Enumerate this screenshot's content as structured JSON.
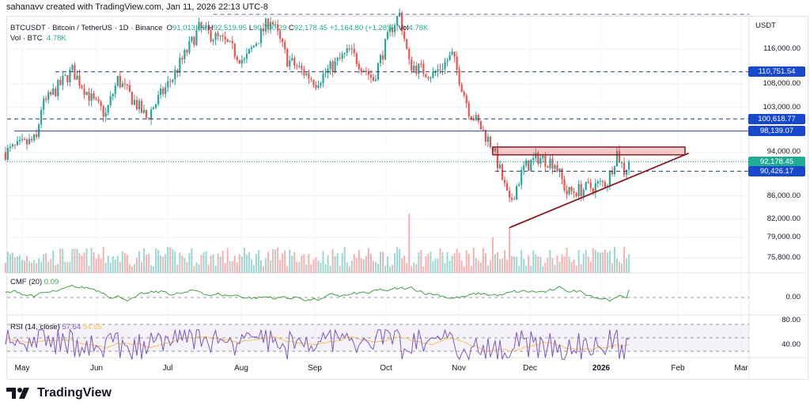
{
  "credit": "sahanavv created with TradingView.com, Jan 11, 2026 22:13 UTC-8",
  "legend": {
    "symbol": "BTCUSDT · Bitcoin / TetherUS · 1D · Binance",
    "open_label": "O",
    "open": "91,013.66",
    "high_label": "H",
    "high": "92,519.95",
    "low_label": "L",
    "low": "90,700.29",
    "close_label": "C",
    "close": "92,178.45",
    "change": "+1,164.80 (+1.28%)",
    "vol_label": "Vol",
    "vol": "4.78K",
    "vol_pane_label": "Vol · BTC",
    "vol_pane_value": "4.78K"
  },
  "cmf": {
    "label": "CMF (20)",
    "value": "0.09",
    "color": "#43a047"
  },
  "rsi": {
    "label": "RSI (14, close)",
    "value": "57.64",
    "ma_value": "54.65",
    "color": "#7e57c2",
    "ma_color": "#f5c451"
  },
  "colors": {
    "up": "#26a69a",
    "down": "#ef5350",
    "level": "#1848cc",
    "pattern": "#8b1d26",
    "last_price": "#26a69a"
  },
  "axis": {
    "currency": "USDT",
    "price_ticks": [
      "116,000.00",
      "108,000.00",
      "103,000.00",
      "94,000.00",
      "86,000.00",
      "82,000.00",
      "79,000.00",
      "75,800.00"
    ],
    "cmf_ticks": [
      "0.00"
    ],
    "rsi_ticks": [
      "80.00",
      "40.00"
    ],
    "time_ticks": [
      "May",
      "Jun",
      "Jul",
      "Aug",
      "Sep",
      "Oct",
      "Nov",
      "Dec",
      "2026",
      "Feb",
      "Mar"
    ],
    "scale": "log"
  },
  "price_tags": [
    {
      "value": "110,751.54",
      "style": "dashed"
    },
    {
      "value": "100,618.77",
      "style": "dashed"
    },
    {
      "value": "98,139.07",
      "style": "solid"
    },
    {
      "value": "92,178.45",
      "style": "last-price"
    },
    {
      "value": "90,426.17",
      "style": "dashed"
    }
  ],
  "chart_data": {
    "type": "candlestick",
    "symbol": "BTCUSDT",
    "interval": "1D",
    "approx_close_path": [
      [
        "2025-04-24",
        94000
      ],
      [
        "2025-05-07",
        96500
      ],
      [
        "2025-05-09",
        103000
      ],
      [
        "2025-05-22",
        111000
      ],
      [
        "2025-05-31",
        104000
      ],
      [
        "2025-06-05",
        101500
      ],
      [
        "2025-06-10",
        109000
      ],
      [
        "2025-06-22",
        100800
      ],
      [
        "2025-07-03",
        109500
      ],
      [
        "2025-07-10",
        116500
      ],
      [
        "2025-07-14",
        121000
      ],
      [
        "2025-07-25",
        117500
      ],
      [
        "2025-08-02",
        113000
      ],
      [
        "2025-08-13",
        123500
      ],
      [
        "2025-08-20",
        113500
      ],
      [
        "2025-09-01",
        108500
      ],
      [
        "2025-09-15",
        115500
      ],
      [
        "2025-09-25",
        109000
      ],
      [
        "2025-10-03",
        121500
      ],
      [
        "2025-10-06",
        124500
      ],
      [
        "2025-10-10",
        112500
      ],
      [
        "2025-10-20",
        110000
      ],
      [
        "2025-10-28",
        114500
      ],
      [
        "2025-11-04",
        102500
      ],
      [
        "2025-11-14",
        95000
      ],
      [
        "2025-11-21",
        84500
      ],
      [
        "2025-11-27",
        91000
      ],
      [
        "2025-12-03",
        93000
      ],
      [
        "2025-12-10",
        92000
      ],
      [
        "2025-12-15",
        86500
      ],
      [
        "2025-12-25",
        87500
      ],
      [
        "2026-01-01",
        88500
      ],
      [
        "2026-01-05",
        94000
      ],
      [
        "2026-01-08",
        90500
      ],
      [
        "2026-01-10",
        92178.45
      ]
    ],
    "levels": [
      124500,
      110751.54,
      100618.77,
      98139.07,
      90426.17
    ],
    "resistance_zone": [
      93500,
      95000
    ],
    "ascending_trendline": [
      [
        "2025-11-21",
        80600
      ],
      [
        "2026-02-04",
        93800
      ]
    ],
    "grid": true
  }
}
